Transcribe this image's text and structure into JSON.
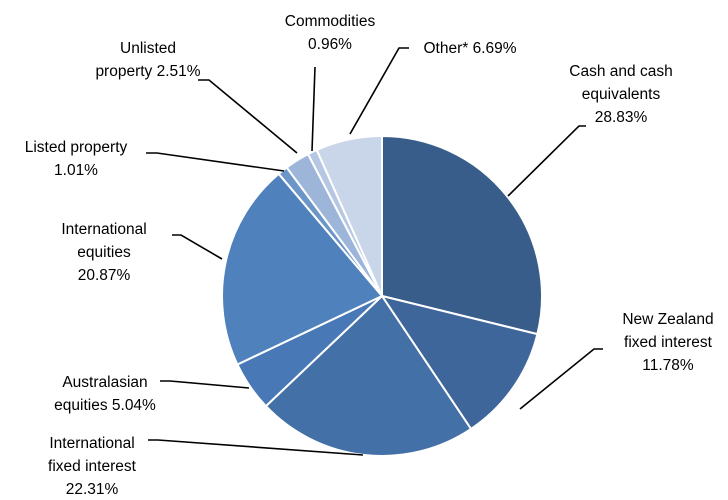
{
  "chart_data": {
    "type": "pie",
    "title": "",
    "start_angle_deg": 0,
    "direction": "clockwise",
    "slices": [
      {
        "label_lines": [
          "Cash and cash",
          "equivalents",
          "28.83%"
        ],
        "name": "Cash and cash equivalents",
        "value": 28.83,
        "color": "#385d8a"
      },
      {
        "label_lines": [
          "New Zealand",
          "fixed interest",
          "11.78%"
        ],
        "name": "New Zealand fixed interest",
        "value": 11.78,
        "color": "#3e669a"
      },
      {
        "label_lines": [
          "International",
          "fixed interest",
          "22.31%"
        ],
        "name": "International fixed interest",
        "value": 22.31,
        "color": "#4470a8"
      },
      {
        "label_lines": [
          "Australasian",
          "equities 5.04%"
        ],
        "name": "Australasian equities",
        "value": 5.04,
        "color": "#4879b6"
      },
      {
        "label_lines": [
          "International",
          "equities",
          "20.87%"
        ],
        "name": "International equities",
        "value": 20.87,
        "color": "#4f81bd"
      },
      {
        "label_lines": [
          "Listed property",
          "1.01%"
        ],
        "name": "Listed property",
        "value": 1.01,
        "color": "#6c95c8"
      },
      {
        "label_lines": [
          "Unlisted",
          "property 2.51%"
        ],
        "name": "Unlisted property",
        "value": 2.51,
        "color": "#9db5d8"
      },
      {
        "label_lines": [
          "Commodities",
          "0.96%"
        ],
        "name": "Commodities",
        "value": 0.96,
        "color": "#b5c7e2"
      },
      {
        "label_lines": [
          "Other* 6.69%"
        ],
        "name": "Other*",
        "value": 6.69,
        "color": "#c9d5e8"
      }
    ]
  }
}
